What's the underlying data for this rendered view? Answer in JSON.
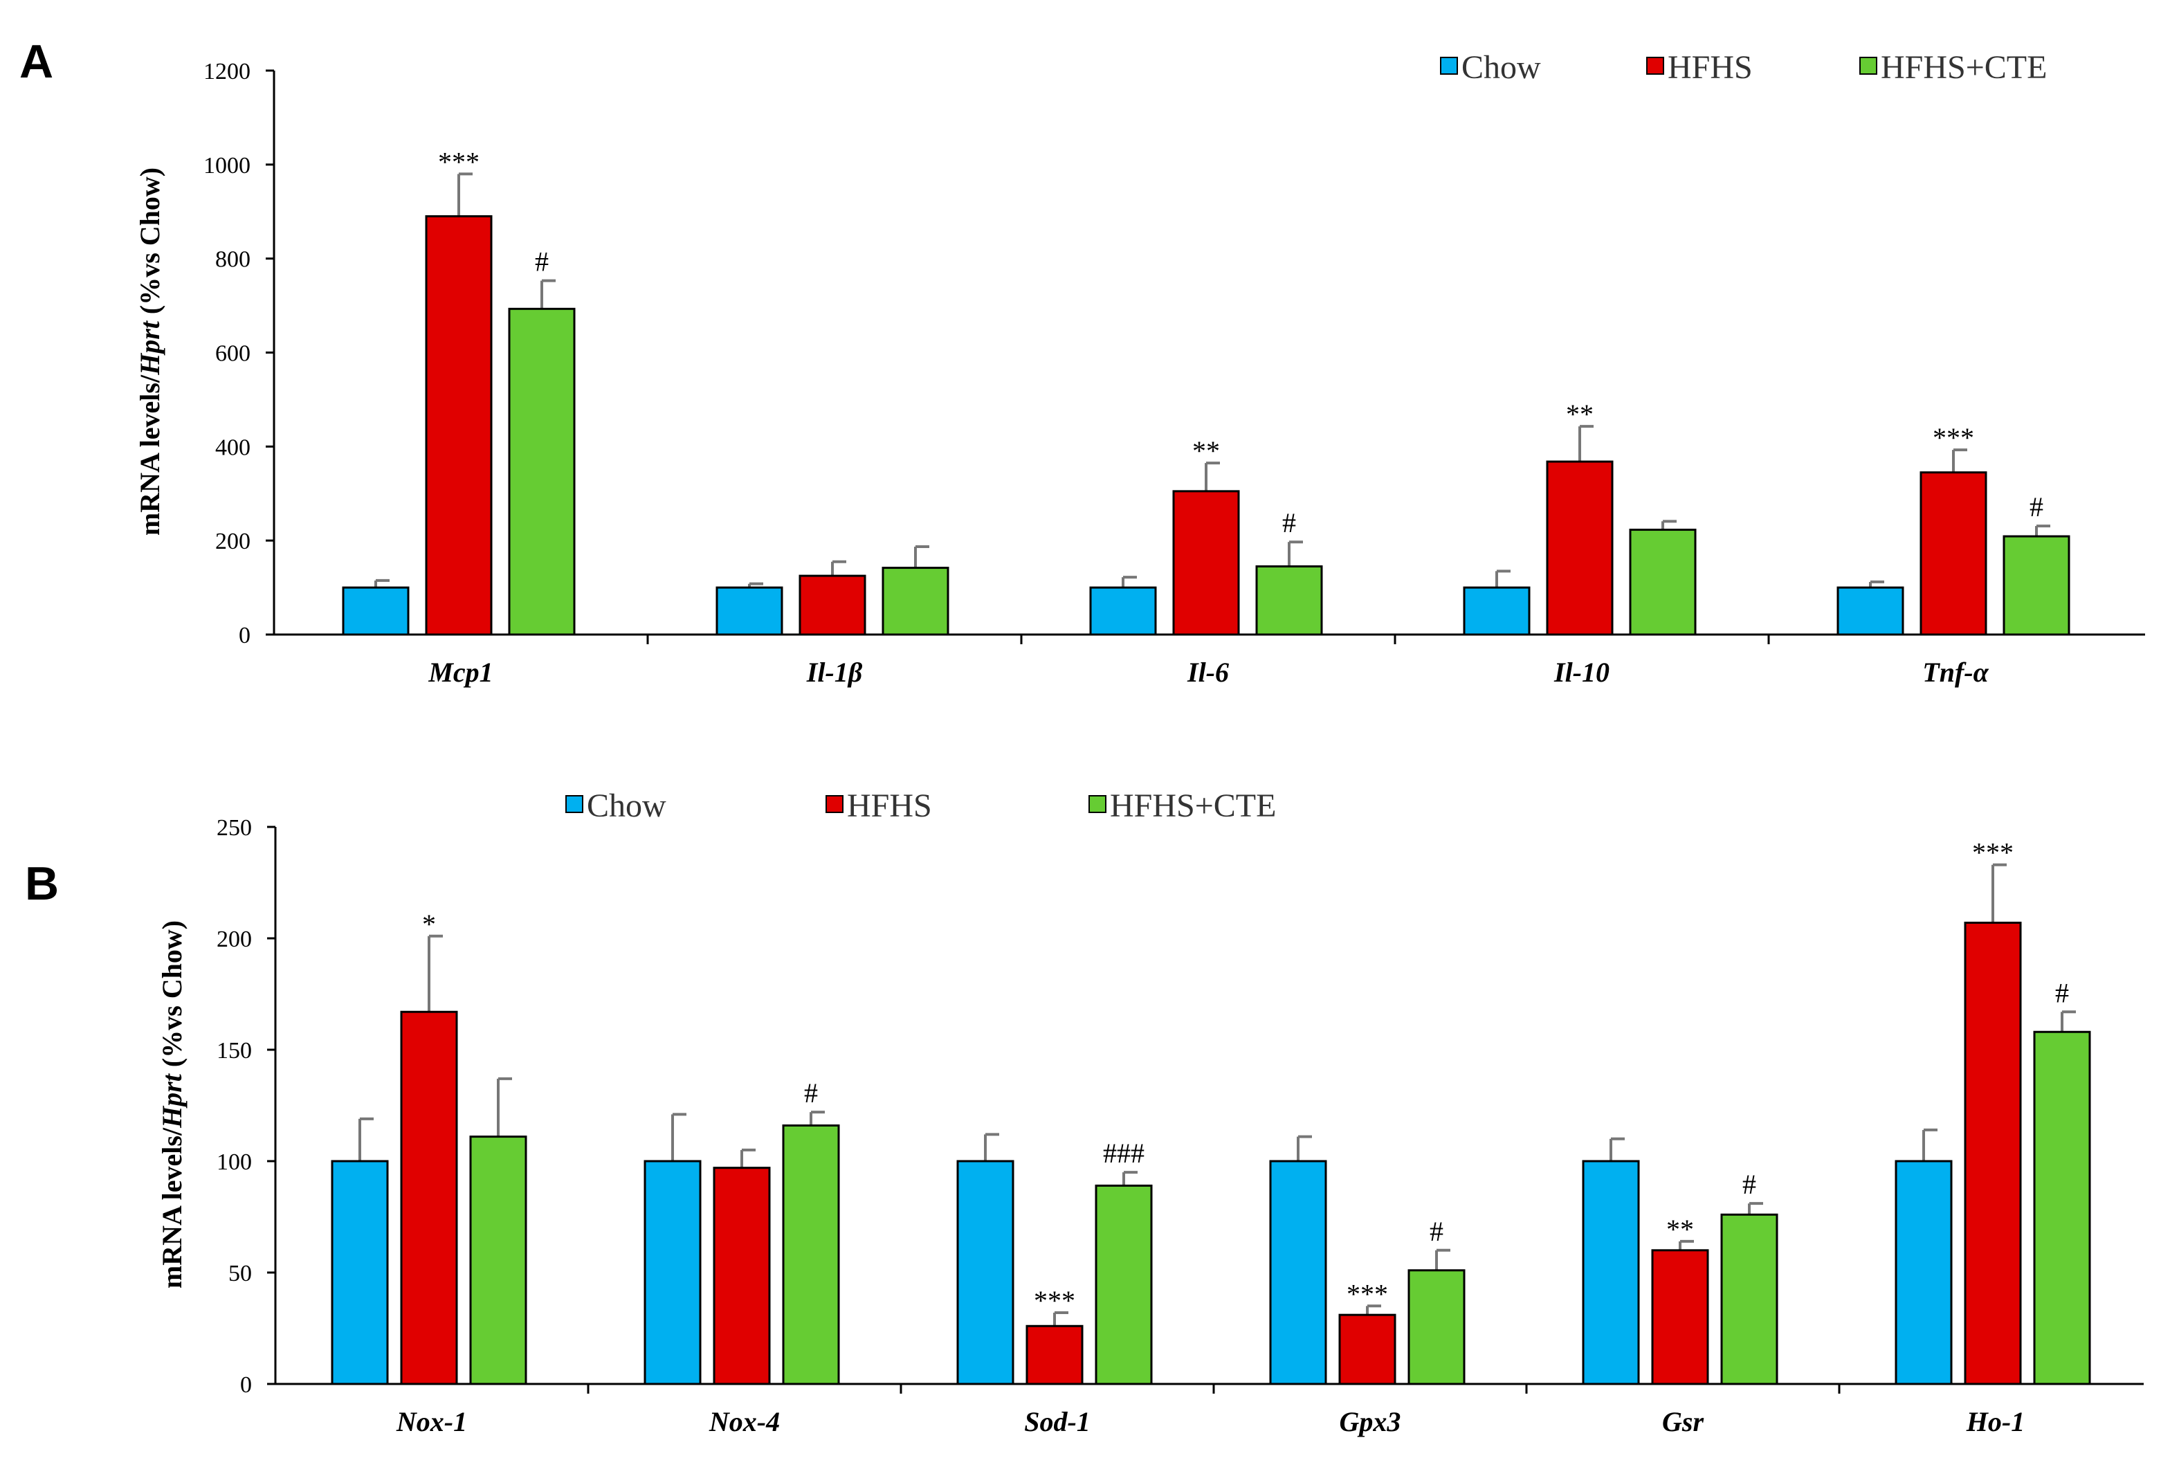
{
  "colors": {
    "Chow": "#00b0f0",
    "HFHS": "#e00000",
    "HFHS+CTE": "#66cc33"
  },
  "chart_data": [
    {
      "type": "bar",
      "panel": "A",
      "ylabel": "mRNA levels/Hprt (%vs Chow)",
      "ylim": [
        0,
        1200
      ],
      "yticks": [
        0,
        200,
        400,
        600,
        800,
        1000,
        1200
      ],
      "legend": [
        "Chow",
        "HFHS",
        "HFHS+CTE"
      ],
      "legend_position": "top-right",
      "categories": [
        "Mcp1",
        "Il-1β",
        "Il-6",
        "Il-10",
        "Tnf-α"
      ],
      "series": [
        {
          "name": "Chow",
          "values": [
            100,
            100,
            100,
            100,
            100
          ],
          "errors": [
            15,
            8,
            22,
            35,
            12
          ],
          "significance": [
            "",
            "",
            "",
            "",
            ""
          ]
        },
        {
          "name": "HFHS",
          "values": [
            890,
            125,
            305,
            368,
            345
          ],
          "errors": [
            90,
            30,
            60,
            75,
            48
          ],
          "significance": [
            "***",
            "",
            "**",
            "**",
            "***"
          ]
        },
        {
          "name": "HFHS+CTE",
          "values": [
            693,
            142,
            145,
            223,
            209
          ],
          "errors": [
            60,
            45,
            52,
            18,
            22
          ],
          "significance": [
            "#",
            "",
            "#",
            "",
            "#"
          ]
        }
      ]
    },
    {
      "type": "bar",
      "panel": "B",
      "ylabel": "mRNA levels/Hprt (%vs Chow)",
      "ylim": [
        0,
        250
      ],
      "yticks": [
        0,
        50,
        100,
        150,
        200,
        250
      ],
      "legend": [
        "Chow",
        "HFHS",
        "HFHS+CTE"
      ],
      "legend_position": "top-left",
      "categories": [
        "Nox-1",
        "Nox-4",
        "Sod-1",
        "Gpx3",
        "Gsr",
        "Ho-1"
      ],
      "series": [
        {
          "name": "Chow",
          "values": [
            100,
            100,
            100,
            100,
            100,
            100
          ],
          "errors": [
            19,
            21,
            12,
            11,
            10,
            14
          ],
          "significance": [
            "",
            "",
            "",
            "",
            "",
            ""
          ]
        },
        {
          "name": "HFHS",
          "values": [
            167,
            97,
            26,
            31,
            60,
            207
          ],
          "errors": [
            34,
            8,
            6,
            4,
            4,
            26
          ],
          "significance": [
            "*",
            "",
            "***",
            "***",
            "**",
            "***"
          ]
        },
        {
          "name": "HFHS+CTE",
          "values": [
            111,
            116,
            89,
            51,
            76,
            158
          ],
          "errors": [
            26,
            6,
            6,
            9,
            5,
            9
          ],
          "significance": [
            "",
            "#",
            "###",
            "#",
            "#",
            "#"
          ]
        }
      ]
    }
  ]
}
